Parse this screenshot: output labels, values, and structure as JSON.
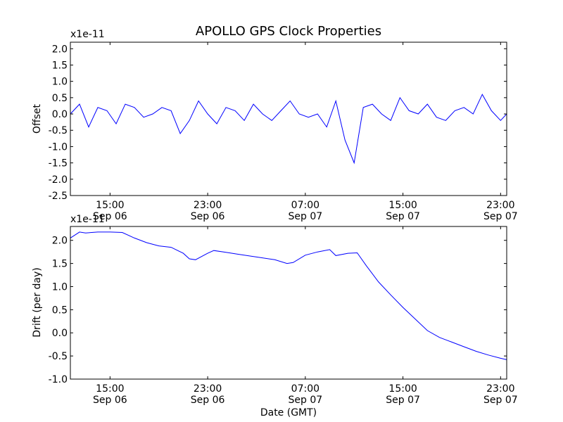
{
  "figure": {
    "title": "APOLLO GPS Clock Properties",
    "xlabel": "Date (GMT)"
  },
  "chart_data": [
    {
      "type": "line",
      "ylabel": "Offset",
      "offset_text": "x1e-11",
      "ylim": [
        -2.5,
        2.2
      ],
      "xlim": [
        "2015-09-06T11:45",
        "2015-09-07T23:30"
      ],
      "yticks": [
        -2.5,
        -2.0,
        -1.5,
        -1.0,
        -0.5,
        0.0,
        0.5,
        1.0,
        1.5,
        2.0
      ],
      "ytick_labels": [
        "-2.5",
        "-2.0",
        "-1.5",
        "-1.0",
        "-0.5",
        "0.0",
        "0.5",
        "1.0",
        "1.5",
        "2.0"
      ],
      "xticks": [
        {
          "time": "15:00",
          "date": "Sep 06"
        },
        {
          "time": "23:00",
          "date": "Sep 06"
        },
        {
          "time": "07:00",
          "date": "Sep 07"
        },
        {
          "time": "15:00",
          "date": "Sep 07"
        },
        {
          "time": "23:00",
          "date": "Sep 07"
        }
      ],
      "line_color": "#0000ff",
      "series": [
        {
          "x": [
            "2015-09-06T11:45",
            "2015-09-06T12:30",
            "2015-09-06T13:15",
            "2015-09-06T14:00",
            "2015-09-06T14:45",
            "2015-09-06T15:30",
            "2015-09-06T16:15",
            "2015-09-06T17:00",
            "2015-09-06T17:45",
            "2015-09-06T18:30",
            "2015-09-06T19:15",
            "2015-09-06T20:00",
            "2015-09-06T20:45",
            "2015-09-06T21:30",
            "2015-09-06T22:15",
            "2015-09-06T23:00",
            "2015-09-06T23:45",
            "2015-09-07T00:30",
            "2015-09-07T01:15",
            "2015-09-07T02:00",
            "2015-09-07T02:45",
            "2015-09-07T03:30",
            "2015-09-07T04:15",
            "2015-09-07T05:00",
            "2015-09-07T05:45",
            "2015-09-07T06:30",
            "2015-09-07T07:15",
            "2015-09-07T08:00",
            "2015-09-07T08:45",
            "2015-09-07T09:30",
            "2015-09-07T10:15",
            "2015-09-07T11:00",
            "2015-09-07T11:45",
            "2015-09-07T12:30",
            "2015-09-07T13:15",
            "2015-09-07T14:00",
            "2015-09-07T14:45",
            "2015-09-07T15:30",
            "2015-09-07T16:15",
            "2015-09-07T17:00",
            "2015-09-07T17:45",
            "2015-09-07T18:30",
            "2015-09-07T19:15",
            "2015-09-07T20:00",
            "2015-09-07T20:45",
            "2015-09-07T21:30",
            "2015-09-07T22:15",
            "2015-09-07T23:00",
            "2015-09-07T23:30"
          ],
          "y": [
            0.0,
            0.3,
            -0.4,
            0.2,
            0.1,
            -0.3,
            0.3,
            0.2,
            -0.1,
            0.0,
            0.2,
            0.1,
            -0.6,
            -0.2,
            0.4,
            0.0,
            -0.3,
            0.2,
            0.1,
            -0.2,
            0.3,
            0.0,
            -0.2,
            0.1,
            0.4,
            0.0,
            -0.1,
            0.0,
            -0.4,
            0.4,
            -0.8,
            -1.5,
            0.2,
            0.3,
            0.0,
            -0.2,
            0.5,
            0.1,
            0.0,
            0.3,
            -0.1,
            -0.2,
            0.1,
            0.2,
            0.0,
            0.6,
            0.1,
            -0.2,
            0.0
          ]
        }
      ]
    },
    {
      "type": "line",
      "ylabel": "Drift (per day)",
      "offset_text": "x1e-11",
      "ylim": [
        -1.0,
        2.3
      ],
      "xlim": [
        "2015-09-06T11:45",
        "2015-09-07T23:30"
      ],
      "yticks": [
        -1.0,
        -0.5,
        0.0,
        0.5,
        1.0,
        1.5,
        2.0
      ],
      "ytick_labels": [
        "-1.0",
        "-0.5",
        "0.0",
        "0.5",
        "1.0",
        "1.5",
        "2.0"
      ],
      "xticks": [
        {
          "time": "15:00",
          "date": "Sep 06"
        },
        {
          "time": "23:00",
          "date": "Sep 06"
        },
        {
          "time": "07:00",
          "date": "Sep 07"
        },
        {
          "time": "15:00",
          "date": "Sep 07"
        },
        {
          "time": "23:00",
          "date": "Sep 07"
        }
      ],
      "line_color": "#0000ff",
      "series": [
        {
          "x": [
            "2015-09-06T11:45",
            "2015-09-06T12:30",
            "2015-09-06T13:00",
            "2015-09-06T14:00",
            "2015-09-06T15:00",
            "2015-09-06T16:00",
            "2015-09-06T17:00",
            "2015-09-06T18:00",
            "2015-09-06T19:00",
            "2015-09-06T20:00",
            "2015-09-06T21:00",
            "2015-09-06T21:30",
            "2015-09-06T22:00",
            "2015-09-06T23:00",
            "2015-09-06T23:30",
            "2015-09-07T00:30",
            "2015-09-07T01:30",
            "2015-09-07T03:00",
            "2015-09-07T04:30",
            "2015-09-07T05:30",
            "2015-09-07T06:00",
            "2015-09-07T07:00",
            "2015-09-07T08:00",
            "2015-09-07T09:00",
            "2015-09-07T09:30",
            "2015-09-07T10:30",
            "2015-09-07T11:15",
            "2015-09-07T12:00",
            "2015-09-07T13:00",
            "2015-09-07T14:00",
            "2015-09-07T15:00",
            "2015-09-07T16:00",
            "2015-09-07T17:00",
            "2015-09-07T18:00",
            "2015-09-07T19:00",
            "2015-09-07T20:00",
            "2015-09-07T21:00",
            "2015-09-07T22:00",
            "2015-09-07T23:00",
            "2015-09-07T23:30"
          ],
          "y": [
            2.05,
            2.18,
            2.16,
            2.18,
            2.18,
            2.17,
            2.05,
            1.95,
            1.88,
            1.85,
            1.72,
            1.6,
            1.58,
            1.72,
            1.78,
            1.74,
            1.7,
            1.64,
            1.58,
            1.5,
            1.52,
            1.68,
            1.75,
            1.8,
            1.67,
            1.72,
            1.73,
            1.45,
            1.1,
            0.82,
            0.55,
            0.3,
            0.05,
            -0.1,
            -0.2,
            -0.3,
            -0.4,
            -0.48,
            -0.55,
            -0.58
          ]
        }
      ]
    }
  ]
}
